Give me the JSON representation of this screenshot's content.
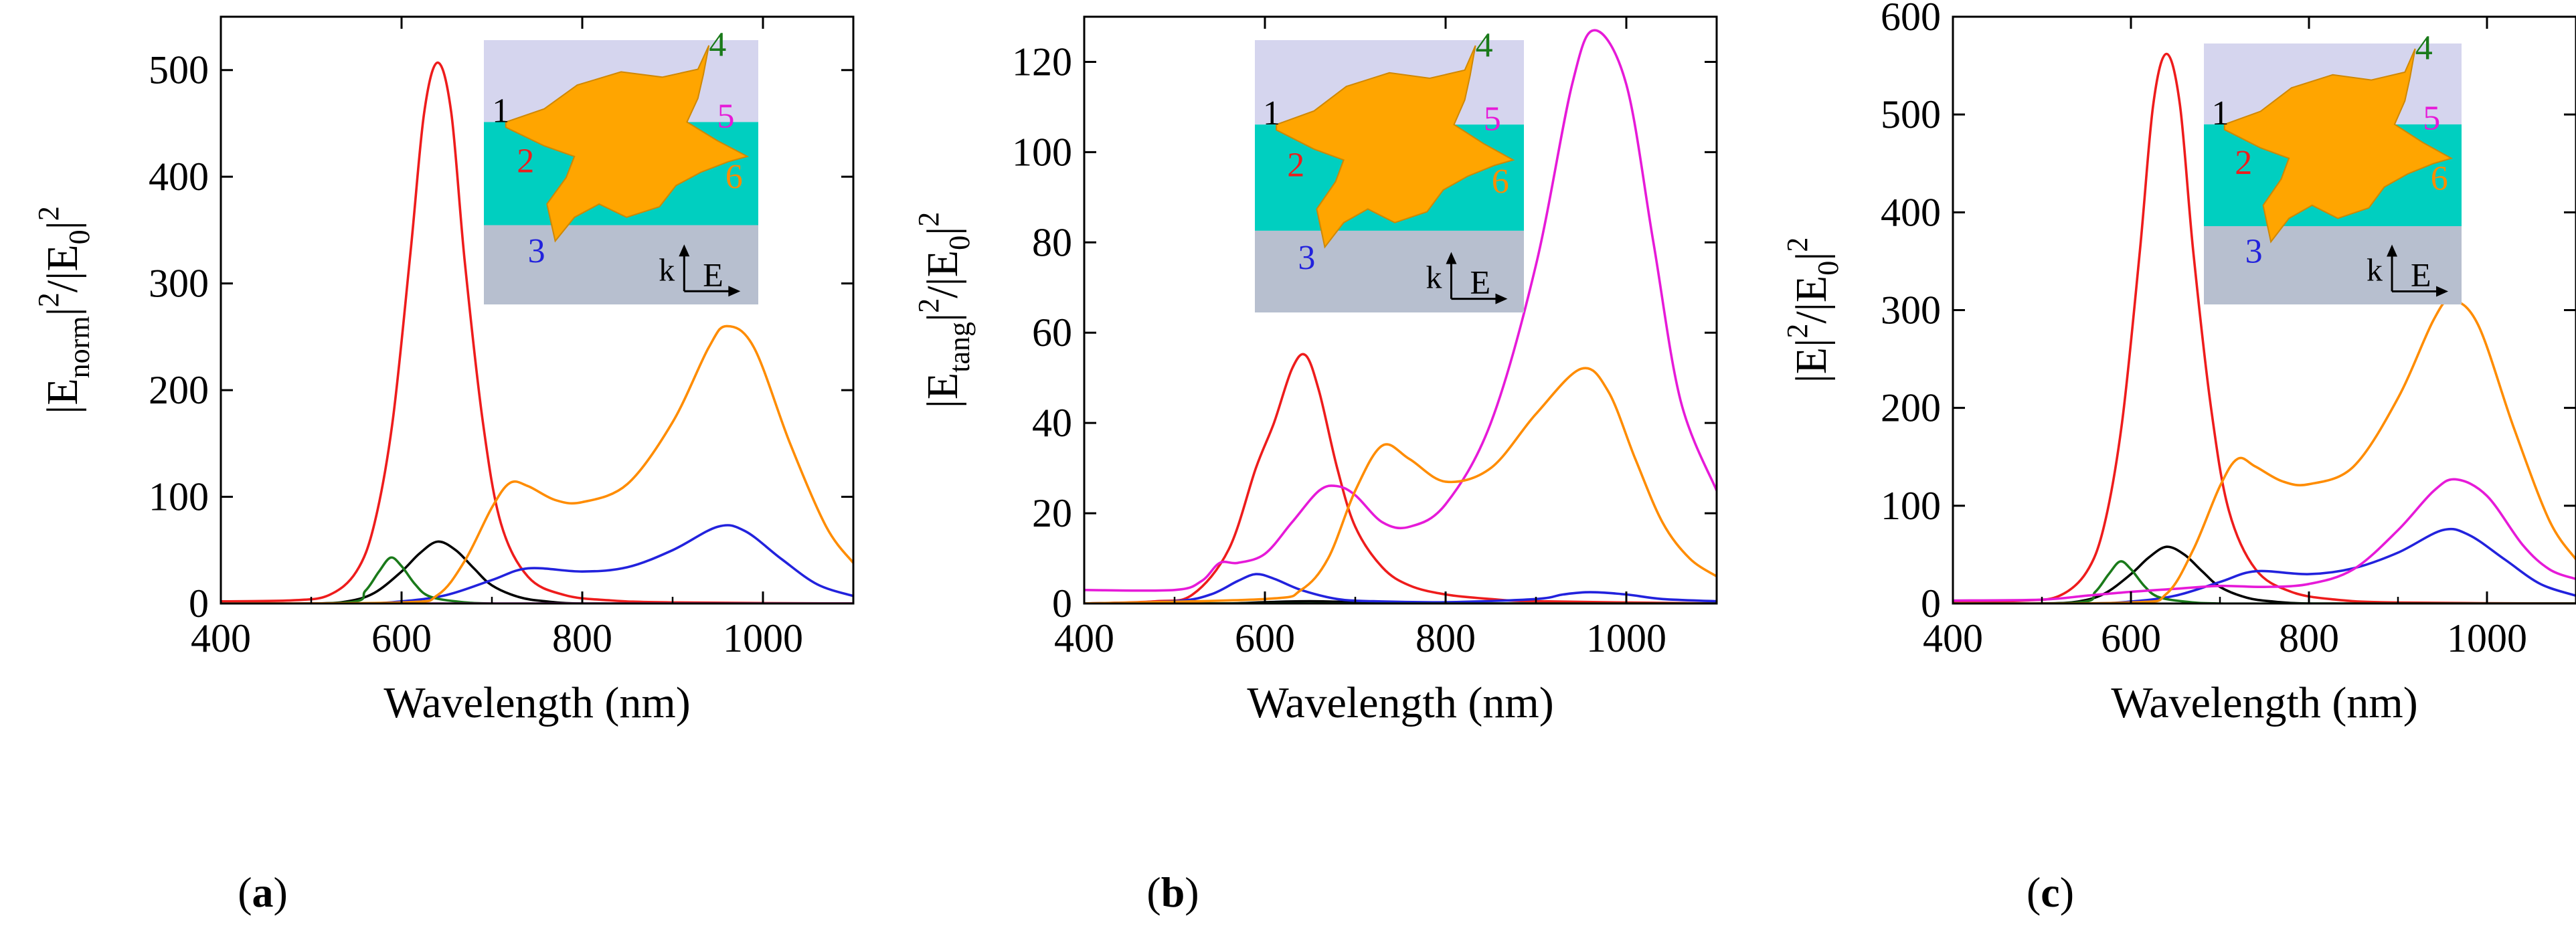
{
  "chart_data": [
    {
      "type": "line",
      "panel": "a",
      "panel_label_pre": "(",
      "panel_label_letter": "a",
      "panel_label_post": ")",
      "xlabel": "Wavelength (nm)",
      "ylabel_parts": [
        "|E",
        "norm",
        "|",
        "2",
        "/|E",
        "0",
        "|",
        "2"
      ],
      "xlim": [
        400,
        1100
      ],
      "ylim": [
        0,
        550
      ],
      "xticks": [
        400,
        600,
        800,
        1000
      ],
      "yticks": [
        0,
        100,
        200,
        300,
        400,
        500
      ],
      "series": [
        {
          "name": "1",
          "color": "#000000",
          "x": [
            400,
            500,
            540,
            570,
            600,
            620,
            640,
            660,
            680,
            700,
            730,
            760,
            800,
            900,
            1100
          ],
          "y": [
            0,
            0,
            2,
            10,
            30,
            47,
            58,
            50,
            33,
            17,
            6,
            2,
            0,
            0,
            0
          ]
        },
        {
          "name": "2",
          "color": "#ee1c1c",
          "x": [
            400,
            480,
            520,
            550,
            570,
            590,
            610,
            625,
            640,
            655,
            670,
            690,
            710,
            740,
            780,
            830,
            900,
            1100
          ],
          "y": [
            2,
            3,
            8,
            30,
            75,
            170,
            330,
            460,
            507,
            460,
            320,
            170,
            75,
            25,
            8,
            3,
            1,
            0
          ]
        },
        {
          "name": "3",
          "color": "#2222dd",
          "x": [
            400,
            550,
            600,
            650,
            700,
            740,
            800,
            850,
            900,
            950,
            980,
            1020,
            1060,
            1100
          ],
          "y": [
            0,
            0,
            2,
            8,
            22,
            33,
            30,
            34,
            50,
            72,
            68,
            42,
            18,
            7
          ]
        },
        {
          "name": "4",
          "color": "#1a7a1a",
          "x": [
            400,
            540,
            560,
            575,
            588,
            600,
            615,
            630,
            660,
            700,
            800,
            1100
          ],
          "y": [
            0,
            1,
            12,
            30,
            43,
            35,
            18,
            7,
            2,
            0,
            0,
            0
          ]
        },
        {
          "name": "5",
          "color": "#e61ad8",
          "x": [
            400,
            600,
            800,
            1000,
            1100
          ],
          "y": [
            0,
            0,
            0,
            0,
            0
          ]
        },
        {
          "name": "6",
          "color": "#ff8c00",
          "x": [
            400,
            600,
            640,
            670,
            700,
            720,
            740,
            770,
            800,
            850,
            900,
            940,
            960,
            990,
            1030,
            1070,
            1100
          ],
          "y": [
            0,
            1,
            8,
            40,
            90,
            113,
            110,
            97,
            95,
            112,
            170,
            240,
            260,
            240,
            150,
            72,
            38
          ]
        }
      ],
      "inset": {
        "labels": [
          "1",
          "2",
          "3",
          "4",
          "5",
          "6"
        ],
        "k_label": "k",
        "e_label": "E"
      }
    },
    {
      "type": "line",
      "panel": "b",
      "panel_label_pre": "(",
      "panel_label_letter": "b",
      "panel_label_post": ")",
      "xlabel": "Wavelength (nm)",
      "ylabel_parts": [
        "|E",
        "tang",
        "|",
        "2",
        "/|E",
        "0",
        "|",
        "2"
      ],
      "xlim": [
        400,
        1100
      ],
      "ylim": [
        0,
        130
      ],
      "xticks": [
        400,
        600,
        800,
        1000
      ],
      "yticks": [
        0,
        20,
        40,
        60,
        80,
        100,
        120
      ],
      "series": [
        {
          "name": "1",
          "color": "#000000",
          "x": [
            400,
            550,
            600,
            650,
            700,
            800,
            1100
          ],
          "y": [
            0,
            0,
            0.3,
            0.5,
            0.3,
            0,
            0
          ]
        },
        {
          "name": "2",
          "color": "#ee1c1c",
          "x": [
            400,
            480,
            520,
            560,
            590,
            610,
            630,
            645,
            660,
            680,
            700,
            730,
            760,
            800,
            850,
            900,
            1100
          ],
          "y": [
            0,
            0.5,
            2,
            12,
            30,
            40,
            52,
            55,
            47,
            30,
            17,
            8,
            4,
            2,
            1,
            0.5,
            0
          ]
        },
        {
          "name": "3",
          "color": "#2222dd",
          "x": [
            400,
            500,
            540,
            570,
            590,
            610,
            640,
            680,
            720,
            800,
            900,
            930,
            960,
            1000,
            1040,
            1100
          ],
          "y": [
            0,
            0.5,
            2,
            5,
            6.5,
            5.5,
            3,
            1,
            0.5,
            0.3,
            1,
            2,
            2.5,
            2,
            1,
            0.5
          ]
        },
        {
          "name": "4",
          "color": "#1a7a1a",
          "x": [
            400,
            600,
            800,
            1000,
            1100
          ],
          "y": [
            0,
            0,
            0,
            0,
            0
          ]
        },
        {
          "name": "5",
          "color": "#e61ad8",
          "x": [
            400,
            500,
            530,
            550,
            570,
            600,
            630,
            660,
            680,
            700,
            730,
            760,
            800,
            850,
            900,
            940,
            965,
            1000,
            1030,
            1060,
            1100
          ],
          "y": [
            3,
            3,
            5,
            9,
            9,
            11,
            18,
            25,
            26,
            24,
            18,
            17,
            22,
            40,
            75,
            115,
            127,
            115,
            80,
            45,
            25
          ]
        },
        {
          "name": "6",
          "color": "#ff8c00",
          "x": [
            400,
            600,
            640,
            670,
            700,
            730,
            760,
            800,
            850,
            900,
            950,
            980,
            1010,
            1040,
            1070,
            1100
          ],
          "y": [
            0,
            1,
            3,
            10,
            25,
            35,
            32,
            27,
            30,
            42,
            52,
            47,
            32,
            18,
            10,
            6
          ]
        }
      ],
      "inset": {
        "labels": [
          "1",
          "2",
          "3",
          "4",
          "5",
          "6"
        ],
        "k_label": "k",
        "e_label": "E"
      }
    },
    {
      "type": "line",
      "panel": "c",
      "panel_label_pre": "(",
      "panel_label_letter": "c",
      "panel_label_post": ")",
      "xlabel": "Wavelength (nm)",
      "ylabel_parts": [
        "|E|",
        "",
        "",
        "2",
        "/|E",
        "0",
        "|",
        "2"
      ],
      "xlim": [
        400,
        1100
      ],
      "ylim": [
        0,
        600
      ],
      "xticks": [
        400,
        600,
        800,
        1000
      ],
      "yticks": [
        0,
        100,
        200,
        300,
        400,
        500,
        600
      ],
      "series": [
        {
          "name": "1",
          "color": "#000000",
          "x": [
            400,
            500,
            540,
            570,
            600,
            620,
            640,
            660,
            680,
            700,
            730,
            760,
            800,
            900,
            1100
          ],
          "y": [
            0,
            0,
            2,
            10,
            30,
            47,
            58,
            50,
            33,
            17,
            6,
            2,
            0,
            0,
            0
          ]
        },
        {
          "name": "2",
          "color": "#ee1c1c",
          "x": [
            400,
            480,
            520,
            550,
            570,
            590,
            610,
            625,
            640,
            655,
            670,
            690,
            710,
            740,
            780,
            830,
            900,
            1100
          ],
          "y": [
            2,
            3,
            8,
            32,
            80,
            185,
            360,
            510,
            562,
            510,
            360,
            200,
            95,
            35,
            12,
            4,
            1,
            0
          ]
        },
        {
          "name": "3",
          "color": "#2222dd",
          "x": [
            400,
            550,
            600,
            650,
            700,
            740,
            800,
            850,
            900,
            950,
            980,
            1020,
            1060,
            1100
          ],
          "y": [
            0,
            0,
            2,
            8,
            22,
            33,
            30,
            36,
            52,
            75,
            70,
            45,
            20,
            8
          ]
        },
        {
          "name": "4",
          "color": "#1a7a1a",
          "x": [
            400,
            540,
            560,
            575,
            588,
            600,
            615,
            630,
            660,
            700,
            800,
            1100
          ],
          "y": [
            0,
            1,
            12,
            30,
            43,
            35,
            18,
            7,
            2,
            0,
            0,
            0
          ]
        },
        {
          "name": "5",
          "color": "#e61ad8",
          "x": [
            400,
            500,
            550,
            600,
            650,
            700,
            750,
            800,
            850,
            900,
            940,
            965,
            1000,
            1040,
            1070,
            1100
          ],
          "y": [
            3,
            4,
            8,
            12,
            15,
            18,
            17,
            20,
            35,
            75,
            115,
            127,
            110,
            60,
            35,
            25
          ]
        },
        {
          "name": "6",
          "color": "#ff8c00",
          "x": [
            400,
            600,
            640,
            670,
            700,
            720,
            740,
            770,
            800,
            850,
            900,
            940,
            960,
            990,
            1030,
            1070,
            1100
          ],
          "y": [
            0,
            1,
            10,
            55,
            120,
            148,
            140,
            125,
            122,
            140,
            210,
            290,
            310,
            285,
            180,
            85,
            45
          ]
        }
      ],
      "inset": {
        "labels": [
          "1",
          "2",
          "3",
          "4",
          "5",
          "6"
        ],
        "k_label": "k",
        "e_label": "E"
      }
    }
  ]
}
